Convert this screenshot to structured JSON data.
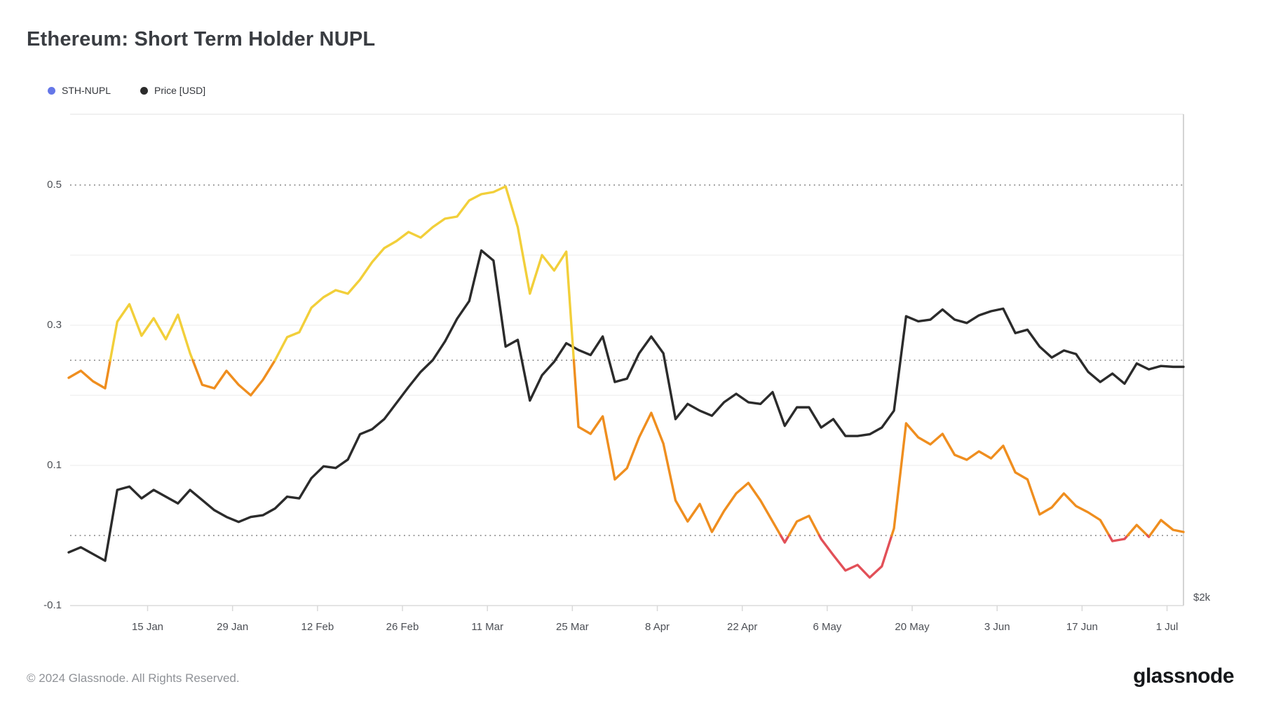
{
  "header": {
    "title": "Ethereum: Short Term Holder NUPL"
  },
  "legend": [
    {
      "label": "STH-NUPL",
      "color": "#6577e8"
    },
    {
      "label": "Price [USD]",
      "color": "#2b2b2b"
    }
  ],
  "footer": {
    "copyright": "© 2024 Glassnode. All Rights Reserved.",
    "brand": "glassnode"
  },
  "chart_data": {
    "type": "line",
    "title": "Ethereum: Short Term Holder NUPL",
    "x_range": "early January 2024 to early July 2024, daily data sampled every 2 days",
    "sample_interval_days": 2,
    "x_tick_labels": [
      "15 Jan",
      "29 Jan",
      "12 Feb",
      "26 Feb",
      "11 Mar",
      "25 Mar",
      "8 Apr",
      "22 Apr",
      "6 May",
      "20 May",
      "3 Jun",
      "17 Jun",
      "1 Jul"
    ],
    "y_ticks": [
      {
        "label": "0.5",
        "value": 0.5
      },
      {
        "label": "0.3",
        "value": 0.3
      },
      {
        "label": "0.1",
        "value": 0.1
      },
      {
        "label": "-0.1",
        "value": -0.1
      }
    ],
    "left_axis": {
      "name": "STH-NUPL",
      "range": [
        -0.1,
        0.6
      ],
      "grid": true
    },
    "right_axis_label": "$2k",
    "dotted_reference_levels": [
      0.5,
      0.25,
      0
    ],
    "solid_gridline_levels": [
      0.4,
      0.3,
      0.2,
      0.1
    ],
    "legend_position": "top-left",
    "series": [
      {
        "name": "STH-NUPL",
        "axis": "left",
        "style": "value-banded-line",
        "band_colors": {
          "above_0_25": "#f2cf3a",
          "zero_to_0_25": "#ef8e1f",
          "below_zero": "#e25058"
        },
        "values": [
          0.225,
          0.235,
          0.22,
          0.21,
          0.305,
          0.33,
          0.285,
          0.31,
          0.28,
          0.315,
          0.26,
          0.215,
          0.21,
          0.235,
          0.215,
          0.2,
          0.222,
          0.25,
          0.283,
          0.29,
          0.325,
          0.34,
          0.35,
          0.345,
          0.365,
          0.39,
          0.41,
          0.42,
          0.433,
          0.425,
          0.44,
          0.452,
          0.455,
          0.478,
          0.487,
          0.49,
          0.498,
          0.44,
          0.345,
          0.4,
          0.378,
          0.405,
          0.155,
          0.145,
          0.17,
          0.08,
          0.096,
          0.14,
          0.175,
          0.131,
          0.05,
          0.02,
          0.045,
          0.005,
          0.035,
          0.06,
          0.075,
          0.05,
          0.02,
          -0.01,
          0.02,
          0.028,
          -0.005,
          -0.028,
          -0.05,
          -0.042,
          -0.06,
          -0.044,
          0.01,
          0.16,
          0.14,
          0.13,
          0.145,
          0.115,
          0.108,
          0.12,
          0.11,
          0.128,
          0.09,
          0.08,
          0.03,
          0.04,
          0.06,
          0.042,
          0.033,
          0.022,
          -0.008,
          -0.005,
          0.015,
          -0.002,
          0.022,
          0.008,
          0.005
        ]
      },
      {
        "name": "Price [USD]",
        "axis": "right",
        "color": "#2b2b2b",
        "unit": "USD",
        "values": [
          2270,
          2300,
          2260,
          2220,
          2640,
          2660,
          2590,
          2640,
          2600,
          2560,
          2640,
          2580,
          2520,
          2480,
          2450,
          2480,
          2490,
          2530,
          2600,
          2590,
          2710,
          2780,
          2770,
          2820,
          2970,
          3000,
          3060,
          3155,
          3250,
          3340,
          3410,
          3520,
          3655,
          3760,
          4060,
          4000,
          3490,
          3530,
          3170,
          3320,
          3400,
          3510,
          3470,
          3440,
          3550,
          3280,
          3300,
          3450,
          3550,
          3450,
          3060,
          3150,
          3110,
          3080,
          3160,
          3210,
          3160,
          3150,
          3220,
          3020,
          3130,
          3130,
          3010,
          3060,
          2960,
          2960,
          2970,
          3010,
          3110,
          3670,
          3640,
          3650,
          3710,
          3650,
          3630,
          3675,
          3700,
          3715,
          3570,
          3590,
          3490,
          3425,
          3467,
          3446,
          3340,
          3280,
          3330,
          3270,
          3390,
          3355,
          3375,
          3370,
          3370
        ]
      }
    ]
  }
}
